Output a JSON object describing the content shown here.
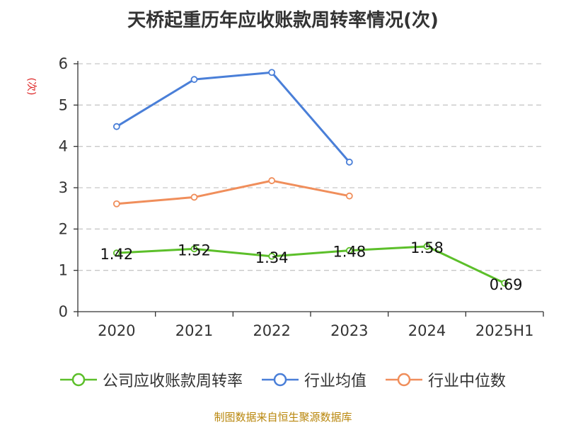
{
  "colors": {
    "company": "#5cbf2a",
    "industry_avg": "#4a7fd8",
    "industry_median": "#f08e5b",
    "grid": "#c8c8c8",
    "axis": "#333333",
    "unit": "#dd2222",
    "source": "#b8860b"
  },
  "chart_data": {
    "type": "line",
    "title": "天桥起重历年应收账款周转率情况(次)",
    "ylabel": "(次)",
    "categories": [
      "2020",
      "2021",
      "2022",
      "2023",
      "2024",
      "2025H1"
    ],
    "ylim": [
      0,
      6
    ],
    "yticks": [
      "0",
      "1",
      "2",
      "3",
      "4",
      "5",
      "6"
    ],
    "grid": true,
    "legend_position": "bottom",
    "series": [
      {
        "name": "公司应收账款周转率",
        "color_key": "company",
        "values": [
          1.42,
          1.52,
          1.34,
          1.48,
          1.58,
          0.69
        ],
        "labels": [
          "1.42",
          "1.52",
          "1.34",
          "1.48",
          "1.58",
          "0.69"
        ]
      },
      {
        "name": "行业均值",
        "color_key": "industry_avg",
        "values": [
          4.48,
          5.62,
          5.79,
          3.62,
          null,
          null
        ]
      },
      {
        "name": "行业中位数",
        "color_key": "industry_median",
        "values": [
          2.61,
          2.77,
          3.17,
          2.8,
          null,
          null
        ]
      }
    ],
    "source": "制图数据来自恒生聚源数据库"
  }
}
